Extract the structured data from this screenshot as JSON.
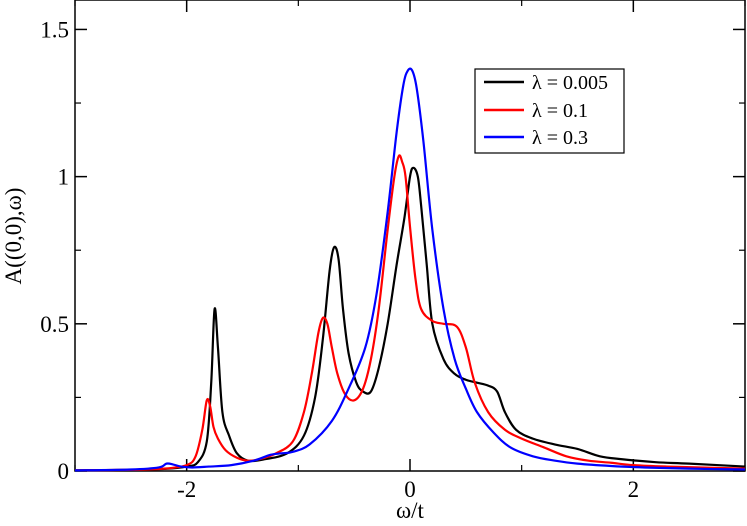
{
  "chart_data": {
    "type": "line",
    "title": "",
    "xlabel": "ω/t",
    "ylabel": "A((0,0),ω)",
    "xlim": [
      -3,
      3
    ],
    "ylim": [
      0,
      1.6
    ],
    "x_ticks": [
      -2,
      0,
      2
    ],
    "x_tick_labels": [
      "-2",
      "0",
      "2"
    ],
    "y_ticks": [
      0,
      0.5,
      1,
      1.5
    ],
    "y_tick_labels": [
      "0",
      "0.5",
      "1",
      "1.5"
    ],
    "grid": false,
    "legend": {
      "placement": "top-right",
      "entries": [
        "λ = 0.005",
        "λ = 0.1",
        "λ = 0.3"
      ]
    },
    "series": [
      {
        "name": "λ = 0.005",
        "color": "#000000",
        "x": [
          -3,
          -2.5,
          -2.2,
          -2.0,
          -1.9,
          -1.82,
          -1.78,
          -1.75,
          -1.72,
          -1.68,
          -1.62,
          -1.55,
          -1.45,
          -1.3,
          -1.1,
          -0.95,
          -0.85,
          -0.78,
          -0.72,
          -0.68,
          -0.64,
          -0.6,
          -0.55,
          -0.48,
          -0.42,
          -0.35,
          -0.28,
          -0.2,
          -0.12,
          -0.05,
          0.0,
          0.03,
          0.07,
          0.1,
          0.15,
          0.2,
          0.3,
          0.4,
          0.5,
          0.6,
          0.7,
          0.78,
          0.85,
          0.95,
          1.1,
          1.3,
          1.5,
          1.7,
          1.9,
          2.2,
          2.5,
          3.0
        ],
        "y": [
          0.002,
          0.004,
          0.007,
          0.015,
          0.03,
          0.1,
          0.3,
          0.55,
          0.42,
          0.2,
          0.12,
          0.06,
          0.035,
          0.04,
          0.06,
          0.12,
          0.25,
          0.45,
          0.68,
          0.76,
          0.72,
          0.55,
          0.4,
          0.3,
          0.27,
          0.27,
          0.35,
          0.5,
          0.7,
          0.86,
          1.0,
          1.03,
          1.0,
          0.9,
          0.7,
          0.5,
          0.38,
          0.33,
          0.31,
          0.3,
          0.29,
          0.27,
          0.2,
          0.14,
          0.11,
          0.09,
          0.075,
          0.05,
          0.04,
          0.03,
          0.025,
          0.015
        ]
      },
      {
        "name": "λ = 0.1",
        "color": "#ff0000",
        "x": [
          -3,
          -2.5,
          -2.2,
          -2.0,
          -1.92,
          -1.86,
          -1.82,
          -1.79,
          -1.76,
          -1.72,
          -1.65,
          -1.55,
          -1.45,
          -1.35,
          -1.2,
          -1.05,
          -0.95,
          -0.88,
          -0.82,
          -0.78,
          -0.74,
          -0.7,
          -0.65,
          -0.58,
          -0.5,
          -0.42,
          -0.35,
          -0.28,
          -0.2,
          -0.14,
          -0.1,
          -0.07,
          -0.04,
          0.0,
          0.05,
          0.1,
          0.2,
          0.3,
          0.42,
          0.5,
          0.58,
          0.7,
          0.85,
          1.0,
          1.2,
          1.4,
          1.6,
          1.8,
          2.0,
          2.3,
          2.6,
          3.0
        ],
        "y": [
          0.002,
          0.004,
          0.008,
          0.02,
          0.05,
          0.14,
          0.24,
          0.22,
          0.15,
          0.11,
          0.07,
          0.045,
          0.035,
          0.04,
          0.06,
          0.1,
          0.2,
          0.33,
          0.47,
          0.52,
          0.5,
          0.42,
          0.33,
          0.26,
          0.24,
          0.28,
          0.38,
          0.55,
          0.82,
          1.0,
          1.07,
          1.05,
          1.0,
          0.83,
          0.65,
          0.55,
          0.51,
          0.5,
          0.49,
          0.42,
          0.3,
          0.2,
          0.14,
          0.11,
          0.08,
          0.05,
          0.035,
          0.028,
          0.02,
          0.015,
          0.012,
          0.008
        ]
      },
      {
        "name": "λ = 0.3",
        "color": "#0000ff",
        "x": [
          -3,
          -2.5,
          -2.25,
          -2.18,
          -2.12,
          -2.05,
          -1.95,
          -1.8,
          -1.6,
          -1.4,
          -1.25,
          -1.15,
          -1.05,
          -0.9,
          -0.7,
          -0.55,
          -0.4,
          -0.3,
          -0.2,
          -0.12,
          -0.06,
          -0.02,
          0.02,
          0.06,
          0.12,
          0.2,
          0.3,
          0.4,
          0.5,
          0.6,
          0.75,
          0.9,
          1.1,
          1.3,
          1.5,
          1.8,
          2.1,
          2.5,
          3.0
        ],
        "y": [
          0.002,
          0.005,
          0.012,
          0.025,
          0.022,
          0.015,
          0.012,
          0.015,
          0.02,
          0.035,
          0.055,
          0.06,
          0.065,
          0.09,
          0.17,
          0.28,
          0.42,
          0.6,
          0.88,
          1.15,
          1.31,
          1.36,
          1.36,
          1.3,
          1.12,
          0.82,
          0.55,
          0.38,
          0.28,
          0.2,
          0.13,
          0.08,
          0.05,
          0.035,
          0.025,
          0.017,
          0.012,
          0.008,
          0.005
        ]
      }
    ]
  }
}
